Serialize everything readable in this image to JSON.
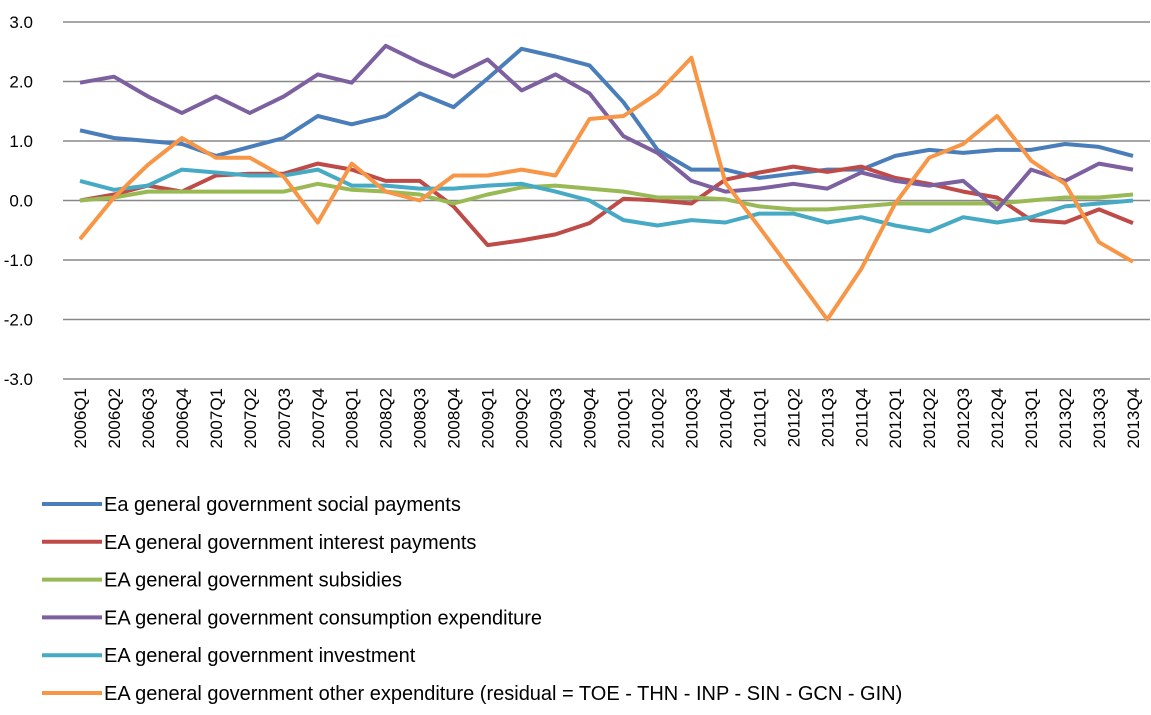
{
  "chart_data": {
    "type": "line",
    "categories": [
      "2006Q1",
      "2006Q2",
      "2006Q3",
      "2006Q4",
      "2007Q1",
      "2007Q2",
      "2007Q3",
      "2007Q4",
      "2008Q1",
      "2008Q2",
      "2008Q3",
      "2008Q4",
      "2009Q1",
      "2009Q2",
      "2009Q3",
      "2009Q4",
      "2010Q1",
      "2010Q2",
      "2010Q3",
      "2010Q4",
      "2011Q1",
      "2011Q2",
      "2011Q3",
      "2011Q4",
      "2012Q1",
      "2012Q2",
      "2012Q3",
      "2012Q4",
      "2013Q1",
      "2013Q2",
      "2013Q3",
      "2013Q4"
    ],
    "series": [
      {
        "name": "Ea general government social payments",
        "color": "#4a7ebb",
        "values": [
          1.18,
          1.05,
          1.0,
          0.95,
          0.75,
          0.9,
          1.05,
          1.42,
          1.28,
          1.42,
          1.8,
          1.57,
          2.05,
          2.55,
          2.42,
          2.27,
          1.65,
          0.85,
          0.52,
          0.52,
          0.38,
          0.45,
          0.52,
          0.52,
          0.75,
          0.85,
          0.8,
          0.85,
          0.85,
          0.95,
          0.9,
          0.75
        ]
      },
      {
        "name": "EA general government interest payments",
        "color": "#be4b48",
        "values": [
          0.0,
          0.1,
          0.25,
          0.15,
          0.42,
          0.45,
          0.45,
          0.62,
          0.52,
          0.33,
          0.33,
          -0.1,
          -0.75,
          -0.67,
          -0.57,
          -0.38,
          0.03,
          0.0,
          -0.05,
          0.35,
          0.47,
          0.57,
          0.48,
          0.57,
          0.38,
          0.28,
          0.15,
          0.05,
          -0.33,
          -0.37,
          -0.15,
          -0.38
        ]
      },
      {
        "name": "EA general government subsidies",
        "color": "#98b954",
        "values": [
          0.0,
          0.05,
          0.15,
          0.15,
          0.15,
          0.15,
          0.15,
          0.28,
          0.18,
          0.15,
          0.1,
          -0.05,
          0.1,
          0.22,
          0.25,
          0.2,
          0.15,
          0.05,
          0.05,
          0.02,
          -0.1,
          -0.15,
          -0.15,
          -0.1,
          -0.05,
          -0.05,
          -0.05,
          -0.05,
          0.0,
          0.05,
          0.05,
          0.1
        ]
      },
      {
        "name": "EA general government consumption expenditure",
        "color": "#7d60a0",
        "values": [
          1.98,
          2.08,
          1.75,
          1.47,
          1.75,
          1.47,
          1.75,
          2.12,
          1.98,
          2.6,
          2.32,
          2.08,
          2.37,
          1.85,
          2.12,
          1.8,
          1.08,
          0.8,
          0.33,
          0.15,
          0.2,
          0.28,
          0.2,
          0.47,
          0.33,
          0.25,
          0.33,
          -0.15,
          0.52,
          0.33,
          0.62,
          0.52
        ]
      },
      {
        "name": "EA general government investment",
        "color": "#46aac5",
        "values": [
          0.33,
          0.18,
          0.25,
          0.52,
          0.47,
          0.42,
          0.42,
          0.52,
          0.25,
          0.25,
          0.2,
          0.2,
          0.25,
          0.28,
          0.15,
          0.0,
          -0.33,
          -0.42,
          -0.33,
          -0.37,
          -0.22,
          -0.22,
          -0.37,
          -0.28,
          -0.42,
          -0.52,
          -0.28,
          -0.37,
          -0.28,
          -0.1,
          -0.05,
          0.0
        ]
      },
      {
        "name": "EA general government other expenditure (residual = TOE - THN - INP - SIN - GCN - GIN)",
        "color": "#f79646",
        "values": [
          -0.65,
          0.05,
          0.6,
          1.05,
          0.72,
          0.72,
          0.4,
          -0.37,
          0.62,
          0.15,
          0.0,
          0.42,
          0.42,
          0.52,
          0.42,
          1.37,
          1.42,
          1.8,
          2.4,
          0.3,
          -0.45,
          -1.22,
          -2.0,
          -1.15,
          -0.05,
          0.72,
          0.95,
          1.42,
          0.67,
          0.28,
          -0.7,
          -1.03
        ]
      }
    ],
    "ylim": [
      -3,
      3
    ],
    "yticks": [
      {
        "value": -3,
        "label": "-3.0"
      },
      {
        "value": -2,
        "label": "-2.0"
      },
      {
        "value": -1,
        "label": "-1.0"
      },
      {
        "value": 0,
        "label": "0.0"
      },
      {
        "value": 1,
        "label": "1.0"
      },
      {
        "value": 2,
        "label": "2.0"
      },
      {
        "value": 3,
        "label": "3.0"
      }
    ],
    "grid": true
  }
}
